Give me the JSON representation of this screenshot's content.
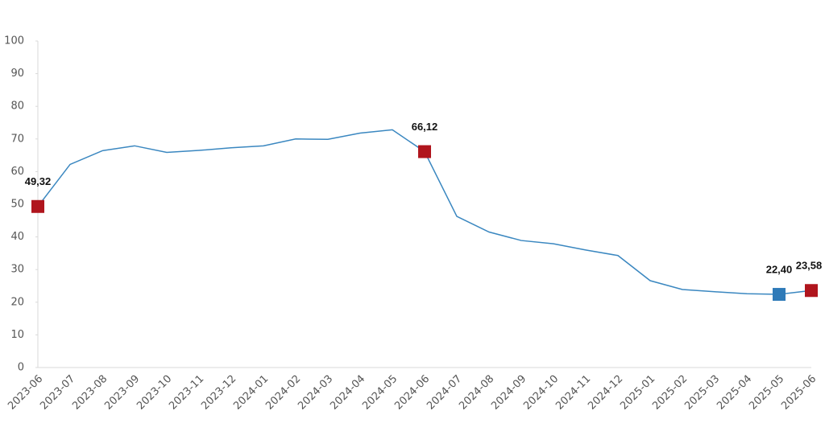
{
  "chart_data": {
    "type": "line",
    "categories": [
      "2023-06",
      "2023-07",
      "2023-08",
      "2023-09",
      "2023-10",
      "2023-11",
      "2023-12",
      "2024-01",
      "2024-02",
      "2024-03",
      "2024-04",
      "2024-05",
      "2024-06",
      "2024-07",
      "2024-08",
      "2024-09",
      "2024-10",
      "2024-11",
      "2024-12",
      "2025-01",
      "2025-02",
      "2025-03",
      "2025-04",
      "2025-05",
      "2025-06"
    ],
    "values": [
      49.32,
      62.2,
      66.4,
      67.9,
      65.9,
      66.5,
      67.3,
      67.9,
      70.0,
      69.9,
      71.8,
      72.8,
      66.12,
      46.3,
      41.5,
      38.9,
      37.9,
      36.0,
      34.3,
      26.6,
      23.9,
      23.2,
      22.6,
      22.4,
      23.58
    ],
    "value_labels": [
      "49,32",
      null,
      null,
      null,
      null,
      null,
      null,
      null,
      null,
      null,
      null,
      null,
      "66,12",
      null,
      null,
      null,
      null,
      null,
      null,
      null,
      null,
      null,
      null,
      "22,40",
      "23,58"
    ],
    "marker_colors": [
      "#b0151d",
      null,
      null,
      null,
      null,
      null,
      null,
      null,
      null,
      null,
      null,
      null,
      "#b0151d",
      null,
      null,
      null,
      null,
      null,
      null,
      null,
      null,
      null,
      null,
      "#2e7ab8",
      "#b0151d"
    ],
    "color": "#3a87c0",
    "ylim": [
      0,
      100
    ],
    "yticks": [
      0,
      10,
      20,
      30,
      40,
      50,
      60,
      70,
      80,
      90,
      100
    ],
    "grid": false
  }
}
